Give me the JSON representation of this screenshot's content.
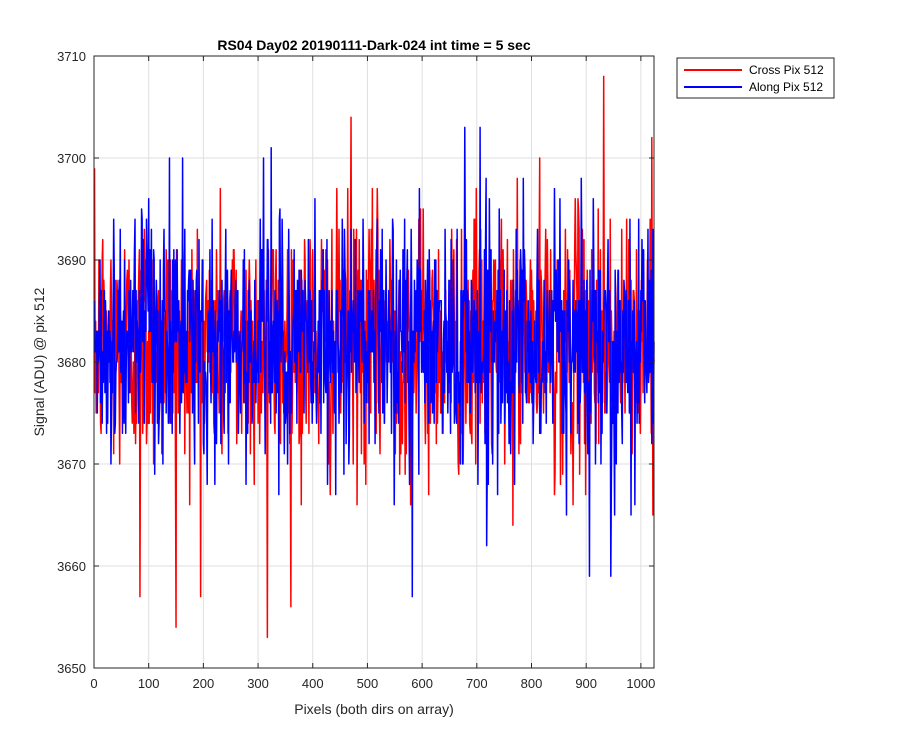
{
  "chart_data": {
    "type": "line",
    "title": "RS04 Day02 20190111-Dark-024 int time = 5 sec",
    "xlabel": "Pixels (both dirs on array)",
    "ylabel": "Signal (ADU) @ pix 512",
    "xlim": [
      0,
      1024
    ],
    "ylim": [
      3650,
      3710
    ],
    "xticks": [
      0,
      100,
      200,
      300,
      400,
      500,
      600,
      700,
      800,
      900,
      1000
    ],
    "yticks": [
      3650,
      3660,
      3670,
      3680,
      3690,
      3700,
      3710
    ],
    "grid": true,
    "legend_position": "outside-top-right",
    "series": [
      {
        "name": "Cross Pix 512",
        "color": "#ff0000",
        "x_start": 1,
        "x_step": 1,
        "count": 1024,
        "mean": 3682,
        "std": 6.3,
        "min": 3653,
        "max": 3708,
        "seed": 12345,
        "notable_points": [
          {
            "x": 84,
            "y": 3657
          },
          {
            "x": 150,
            "y": 3654
          },
          {
            "x": 317,
            "y": 3653
          },
          {
            "x": 470,
            "y": 3704
          },
          {
            "x": 932,
            "y": 3708
          },
          {
            "x": 1020,
            "y": 3702
          }
        ]
      },
      {
        "name": "Along Pix 512",
        "color": "#0000ff",
        "x_start": 1,
        "x_step": 1,
        "count": 1024,
        "mean": 3682,
        "std": 6.0,
        "min": 3657,
        "max": 3703,
        "seed": 67890,
        "notable_points": [
          {
            "x": 582,
            "y": 3657
          },
          {
            "x": 706,
            "y": 3703
          },
          {
            "x": 906,
            "y": 3659
          },
          {
            "x": 945,
            "y": 3659
          },
          {
            "x": 138,
            "y": 3700
          },
          {
            "x": 310,
            "y": 3700
          }
        ]
      }
    ]
  }
}
